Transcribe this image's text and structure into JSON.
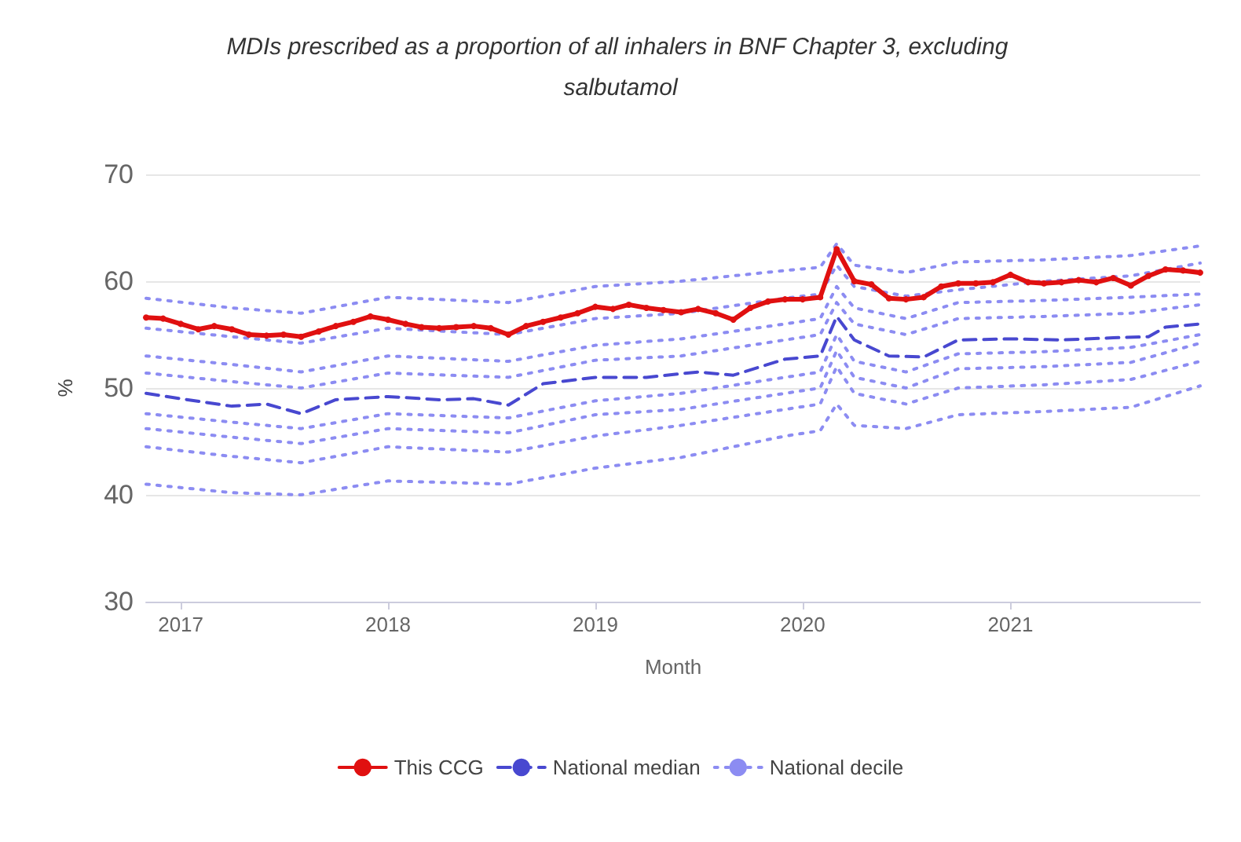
{
  "chart_data": {
    "type": "line",
    "title": "MDIs prescribed as a proportion of all inhalers in BNF Chapter 3, excluding salbutamol",
    "xlabel": "Month",
    "ylabel": "%",
    "xlim": [
      "2016-11",
      "2021-12"
    ],
    "xticks": [
      "2017",
      "2018",
      "2019",
      "2020",
      "2021"
    ],
    "ylim": [
      30,
      70
    ],
    "yticks": [
      30,
      40,
      50,
      60,
      70
    ],
    "grid": "y",
    "legend": "bottom",
    "series": [
      {
        "name": "National decile",
        "color": "#8c8cf2",
        "line_style": "dotted",
        "marker": "none",
        "x": [
          "2016-11",
          "2017-04",
          "2017-08",
          "2018-01",
          "2018-08",
          "2019-01",
          "2019-06",
          "2019-12",
          "2020-02",
          "2020-03",
          "2020-04",
          "2020-07",
          "2020-10",
          "2021-03",
          "2021-08",
          "2021-12"
        ],
        "values": [
          58.4,
          57.5,
          57.0,
          58.5,
          58.0,
          59.5,
          60.0,
          61.0,
          61.3,
          63.5,
          61.5,
          60.8,
          61.8,
          62.0,
          62.4,
          63.3
        ]
      },
      {
        "color": "#8c8cf2",
        "line_style": "dotted",
        "marker": "none",
        "x": [
          "2016-11",
          "2017-04",
          "2017-08",
          "2018-01",
          "2018-08",
          "2019-01",
          "2019-06",
          "2019-12",
          "2020-02",
          "2020-03",
          "2020-04",
          "2020-07",
          "2020-10",
          "2021-03",
          "2021-08",
          "2021-12"
        ],
        "values": [
          55.6,
          54.8,
          54.2,
          55.6,
          55.0,
          56.5,
          57.0,
          58.4,
          58.8,
          61.5,
          59.5,
          58.6,
          59.2,
          60.0,
          60.5,
          61.7
        ]
      },
      {
        "color": "#8c8cf2",
        "line_style": "dotted",
        "marker": "none",
        "x": [
          "2016-11",
          "2017-04",
          "2017-08",
          "2018-01",
          "2018-08",
          "2019-01",
          "2019-06",
          "2019-12",
          "2020-02",
          "2020-03",
          "2020-04",
          "2020-07",
          "2020-10",
          "2021-03",
          "2021-08",
          "2021-12"
        ],
        "values": [
          53.0,
          52.2,
          51.5,
          53.0,
          52.5,
          54.0,
          54.6,
          56.0,
          56.5,
          59.5,
          57.5,
          56.5,
          58.0,
          58.2,
          58.5,
          58.8
        ]
      },
      {
        "color": "#8c8cf2",
        "line_style": "dotted",
        "marker": "none",
        "x": [
          "2016-11",
          "2017-04",
          "2017-08",
          "2018-01",
          "2018-08",
          "2019-01",
          "2019-06",
          "2019-12",
          "2020-02",
          "2020-03",
          "2020-04",
          "2020-07",
          "2020-10",
          "2021-03",
          "2021-08",
          "2021-12"
        ],
        "values": [
          51.4,
          50.6,
          50.0,
          51.4,
          51.0,
          52.6,
          53.0,
          54.5,
          55.0,
          58.0,
          56.0,
          55.0,
          56.5,
          56.7,
          57.0,
          57.8
        ]
      },
      {
        "color": "#8c8cf2",
        "line_style": "dotted",
        "marker": "none",
        "x": [
          "2016-11",
          "2017-04",
          "2017-08",
          "2018-01",
          "2018-08",
          "2019-01",
          "2019-06",
          "2019-12",
          "2020-02",
          "2020-03",
          "2020-04",
          "2020-07",
          "2020-10",
          "2021-03",
          "2021-08",
          "2021-12"
        ],
        "values": [
          47.6,
          46.8,
          46.2,
          47.6,
          47.2,
          48.8,
          49.5,
          51.0,
          51.5,
          55.0,
          52.5,
          51.5,
          53.2,
          53.4,
          53.8,
          55.0
        ]
      },
      {
        "color": "#8c8cf2",
        "line_style": "dotted",
        "marker": "none",
        "x": [
          "2016-11",
          "2017-04",
          "2017-08",
          "2018-01",
          "2018-08",
          "2019-01",
          "2019-06",
          "2019-12",
          "2020-02",
          "2020-03",
          "2020-04",
          "2020-07",
          "2020-10",
          "2021-03",
          "2021-08",
          "2021-12"
        ],
        "values": [
          46.2,
          45.4,
          44.8,
          46.2,
          45.8,
          47.5,
          48.0,
          49.5,
          50.0,
          53.5,
          51.0,
          50.0,
          51.8,
          52.0,
          52.4,
          54.2
        ]
      },
      {
        "color": "#8c8cf2",
        "line_style": "dotted",
        "marker": "none",
        "x": [
          "2016-11",
          "2017-04",
          "2017-08",
          "2018-01",
          "2018-08",
          "2019-01",
          "2019-06",
          "2019-12",
          "2020-02",
          "2020-03",
          "2020-04",
          "2020-07",
          "2020-10",
          "2021-03",
          "2021-08",
          "2021-12"
        ],
        "values": [
          44.5,
          43.6,
          43.0,
          44.5,
          44.0,
          45.5,
          46.5,
          48.0,
          48.5,
          52.0,
          49.5,
          48.5,
          50.0,
          50.3,
          50.8,
          52.5
        ]
      },
      {
        "color": "#8c8cf2",
        "line_style": "dotted",
        "marker": "none",
        "x": [
          "2016-11",
          "2017-04",
          "2017-08",
          "2018-01",
          "2018-08",
          "2019-01",
          "2019-06",
          "2019-12",
          "2020-02",
          "2020-03",
          "2020-04",
          "2020-07",
          "2020-10",
          "2021-03",
          "2021-08",
          "2021-12"
        ],
        "values": [
          41.0,
          40.2,
          40.0,
          41.3,
          41.0,
          42.5,
          43.5,
          45.5,
          46.0,
          48.5,
          46.5,
          46.2,
          47.5,
          47.8,
          48.2,
          50.2
        ]
      },
      {
        "name": "National median",
        "color": "#4848d0",
        "line_style": "dashed",
        "marker": "none",
        "x": [
          "2016-11",
          "2017-01",
          "2017-04",
          "2017-06",
          "2017-08",
          "2017-10",
          "2018-01",
          "2018-04",
          "2018-06",
          "2018-08",
          "2018-10",
          "2019-01",
          "2019-04",
          "2019-07",
          "2019-09",
          "2019-12",
          "2020-02",
          "2020-03",
          "2020-04",
          "2020-06",
          "2020-08",
          "2020-10",
          "2021-01",
          "2021-04",
          "2021-07",
          "2021-09",
          "2021-10",
          "2021-12"
        ],
        "values": [
          49.5,
          49.0,
          48.3,
          48.5,
          47.6,
          48.9,
          49.2,
          48.9,
          49.0,
          48.4,
          50.4,
          51.0,
          51.0,
          51.5,
          51.2,
          52.7,
          53.0,
          56.7,
          54.5,
          53.0,
          52.9,
          54.5,
          54.6,
          54.5,
          54.7,
          54.8,
          55.7,
          56.0
        ]
      },
      {
        "name": "This CCG",
        "color": "#e01010",
        "line_style": "solid",
        "marker": "circle",
        "x": [
          "2016-11",
          "2016-12",
          "2017-01",
          "2017-02",
          "2017-03",
          "2017-04",
          "2017-05",
          "2017-06",
          "2017-07",
          "2017-08",
          "2017-09",
          "2017-10",
          "2017-11",
          "2017-12",
          "2018-01",
          "2018-02",
          "2018-03",
          "2018-04",
          "2018-05",
          "2018-06",
          "2018-07",
          "2018-08",
          "2018-09",
          "2018-10",
          "2018-11",
          "2018-12",
          "2019-01",
          "2019-02",
          "2019-03",
          "2019-04",
          "2019-05",
          "2019-06",
          "2019-07",
          "2019-08",
          "2019-09",
          "2019-10",
          "2019-11",
          "2019-12",
          "2020-01",
          "2020-02",
          "2020-03",
          "2020-04",
          "2020-05",
          "2020-06",
          "2020-07",
          "2020-08",
          "2020-09",
          "2020-10",
          "2020-11",
          "2020-12",
          "2021-01",
          "2021-02",
          "2021-03",
          "2021-04",
          "2021-05",
          "2021-06",
          "2021-07",
          "2021-08",
          "2021-09",
          "2021-10",
          "2021-11",
          "2021-12"
        ],
        "values": [
          56.6,
          56.5,
          56.0,
          55.5,
          55.8,
          55.5,
          55.0,
          54.9,
          55.0,
          54.8,
          55.3,
          55.8,
          56.2,
          56.7,
          56.4,
          56.0,
          55.7,
          55.6,
          55.7,
          55.8,
          55.6,
          55.0,
          55.8,
          56.2,
          56.6,
          57.0,
          57.6,
          57.4,
          57.8,
          57.5,
          57.3,
          57.1,
          57.4,
          57.0,
          56.4,
          57.5,
          58.1,
          58.3,
          58.3,
          58.5,
          63.0,
          60.0,
          59.7,
          58.4,
          58.3,
          58.5,
          59.5,
          59.8,
          59.8,
          59.9,
          60.6,
          59.9,
          59.8,
          59.9,
          60.1,
          59.9,
          60.3,
          59.6,
          60.5,
          61.1,
          61.0,
          60.8
        ]
      }
    ]
  }
}
